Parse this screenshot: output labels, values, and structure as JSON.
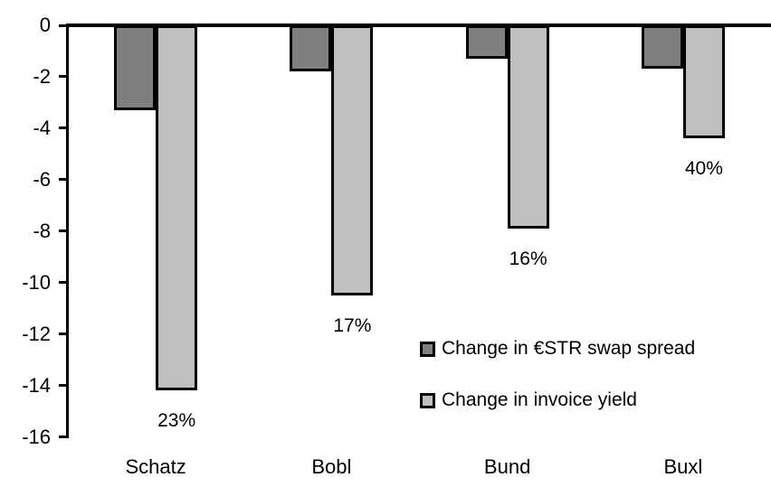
{
  "chart_data": {
    "type": "bar",
    "orientation": "vertical-negative",
    "categories": [
      "Schatz",
      "Bobl",
      "Bund",
      "Buxl"
    ],
    "series": [
      {
        "name": "Change in €STR swap spread",
        "color": "#7f7f7f",
        "values": [
          -3.3,
          -1.8,
          -1.3,
          -1.7
        ]
      },
      {
        "name": "Change in invoice yield",
        "color": "#bfbfbf",
        "values": [
          -14.2,
          -10.5,
          -7.9,
          -4.4
        ]
      }
    ],
    "bar_labels": {
      "attached_series": "Change in invoice yield",
      "values": [
        "23%",
        "17%",
        "16%",
        "40%"
      ]
    },
    "yaxis": {
      "min": -16,
      "max": 0,
      "tick_step": 2,
      "ticks": [
        0,
        -2,
        -4,
        -6,
        -8,
        -10,
        -12,
        -14,
        -16
      ]
    },
    "xlabel": "",
    "ylabel": "",
    "title": "",
    "grid": false,
    "legend_position": "inside-center-right",
    "axis_color": "#000000",
    "background_color": "#ffffff"
  }
}
